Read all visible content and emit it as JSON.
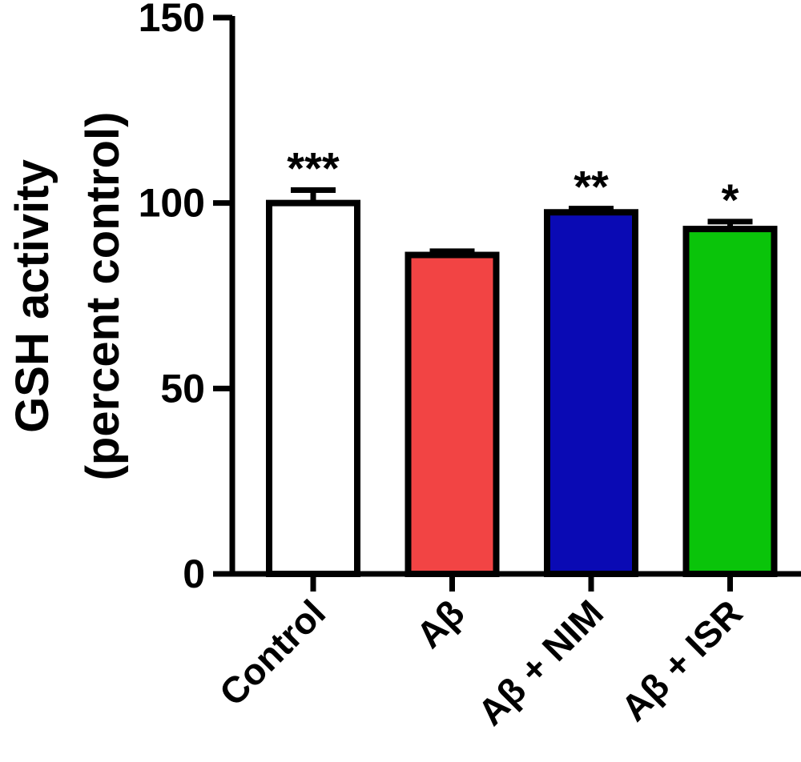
{
  "chart_data": {
    "type": "bar",
    "ylabel_line1": "GSH activity",
    "ylabel_line2": "(percent control)",
    "ylim": [
      0,
      150
    ],
    "yticks": [
      "0",
      "50",
      "100",
      "150"
    ],
    "ytick_values": [
      0,
      50,
      100,
      150
    ],
    "categories": [
      "Control",
      "Aβ",
      "Aβ + NIM",
      "Aβ + ISR"
    ],
    "values": [
      100,
      86,
      97.5,
      93
    ],
    "errors": [
      3.5,
      1,
      1,
      2
    ],
    "significance": [
      "***",
      "",
      "**",
      "*"
    ],
    "colors": [
      "#ffffff",
      "#f24444",
      "#0a0ab4",
      "#0ac40a"
    ],
    "grid": false,
    "legend": "none"
  }
}
